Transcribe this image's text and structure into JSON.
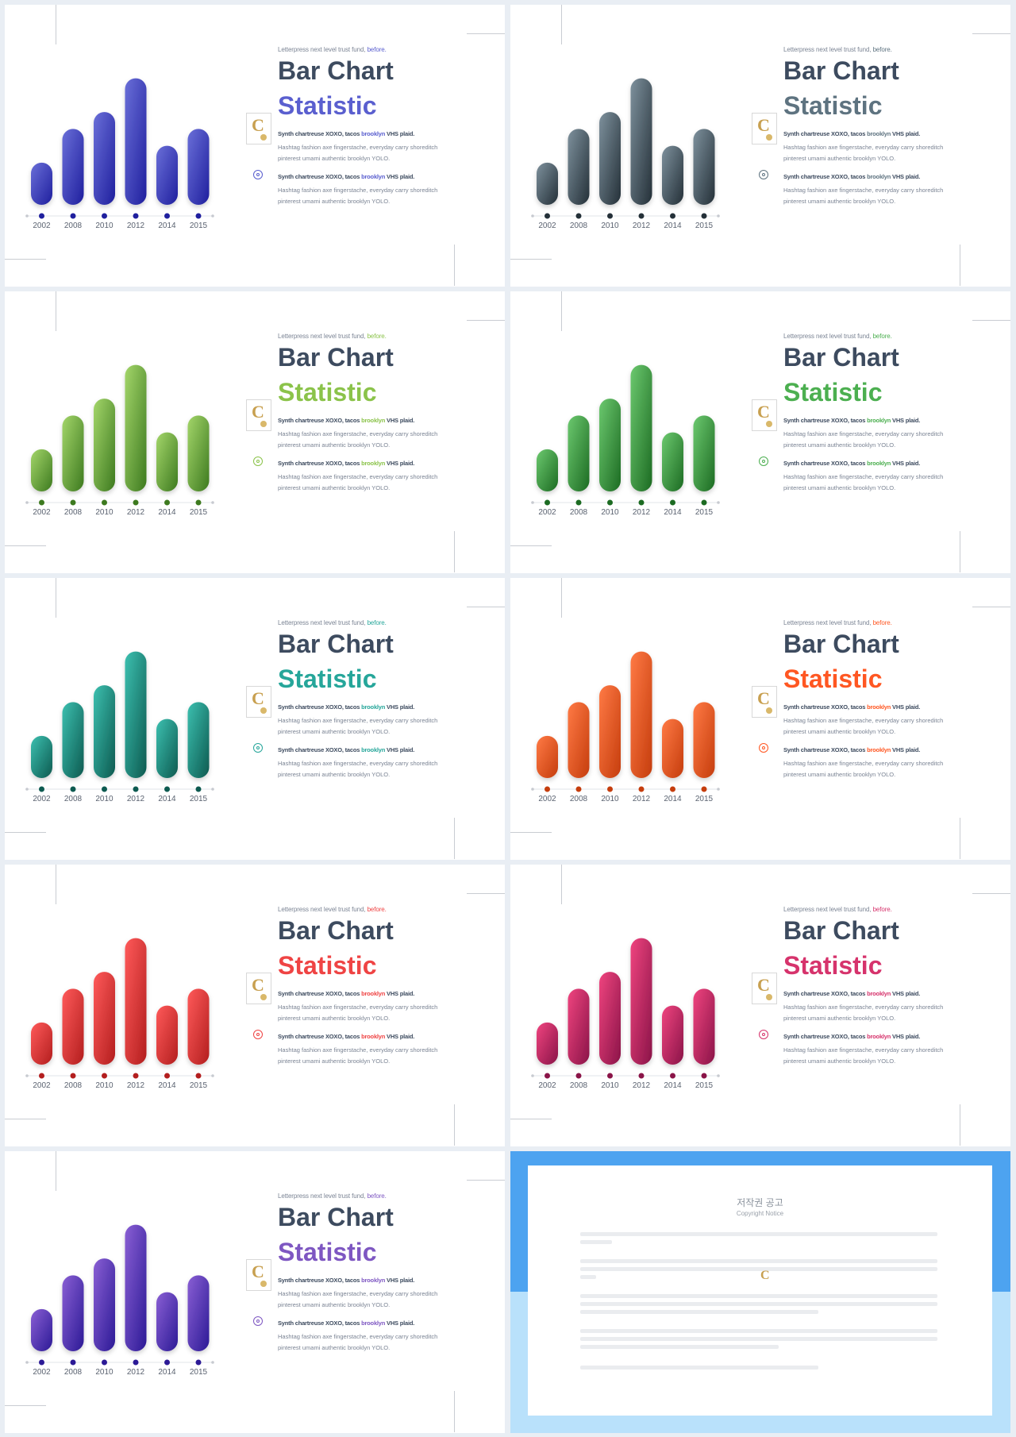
{
  "slides": [
    {
      "accent": "#5a5fcf",
      "title": "Bar Chart",
      "subtitle": "Statistic",
      "gradient": [
        "#6a6fd8",
        "#1f1f9e"
      ]
    },
    {
      "accent": "#5e7380",
      "title": "Bar Chart",
      "subtitle": "Statistic",
      "gradient": [
        "#7e919d",
        "#243038"
      ]
    },
    {
      "accent": "#8bc34a",
      "title": "Bar Chart",
      "subtitle": "Statistic",
      "gradient": [
        "#a4d66a",
        "#3d7a1f"
      ]
    },
    {
      "accent": "#4caf50",
      "title": "Bar Chart",
      "subtitle": "Statistic",
      "gradient": [
        "#6cc96f",
        "#1c6b22"
      ]
    },
    {
      "accent": "#26a69a",
      "title": "Bar Chart",
      "subtitle": "Statistic",
      "gradient": [
        "#3cc0b0",
        "#0d5a50"
      ]
    },
    {
      "accent": "#ff5722",
      "title": "Bar Chart",
      "subtitle": "Statistic",
      "gradient": [
        "#ff7a45",
        "#c53d0d"
      ]
    },
    {
      "accent": "#ef4444",
      "title": "Bar Chart",
      "subtitle": "Statistic",
      "gradient": [
        "#ff5a5a",
        "#b31e1e"
      ]
    },
    {
      "accent": "#d6336c",
      "title": "Bar Chart",
      "subtitle": "Statistic",
      "gradient": [
        "#f0447f",
        "#8a1448"
      ]
    },
    {
      "accent": "#7e57c2",
      "title": "Bar Chart",
      "subtitle": "Statistic",
      "gradient": [
        "#8a5fd4",
        "#2c1a96"
      ]
    }
  ],
  "text": {
    "kicker_prefix": "Letterpress next level trust fund, ",
    "kicker_highlight": "before.",
    "point_title_prefix": "Synth chartreuse XOXO, tacos ",
    "point_title_highlight": "brooklyn",
    "point_title_suffix": " VHS plaid.",
    "point_body_1": "Hashtag fashion axe fingerstache, everyday carry shoreditch",
    "point_body_2": "pinterest umami authentic brooklyn YOLO."
  },
  "chart_data": {
    "type": "bar",
    "categories": [
      "2002",
      "2008",
      "2010",
      "2012",
      "2014",
      "2015"
    ],
    "values": [
      25,
      45,
      55,
      75,
      35,
      45
    ],
    "ylim": [
      0,
      80
    ]
  },
  "copyright": {
    "title": "저작권 공고",
    "subtitle": "Copyright Notice"
  }
}
